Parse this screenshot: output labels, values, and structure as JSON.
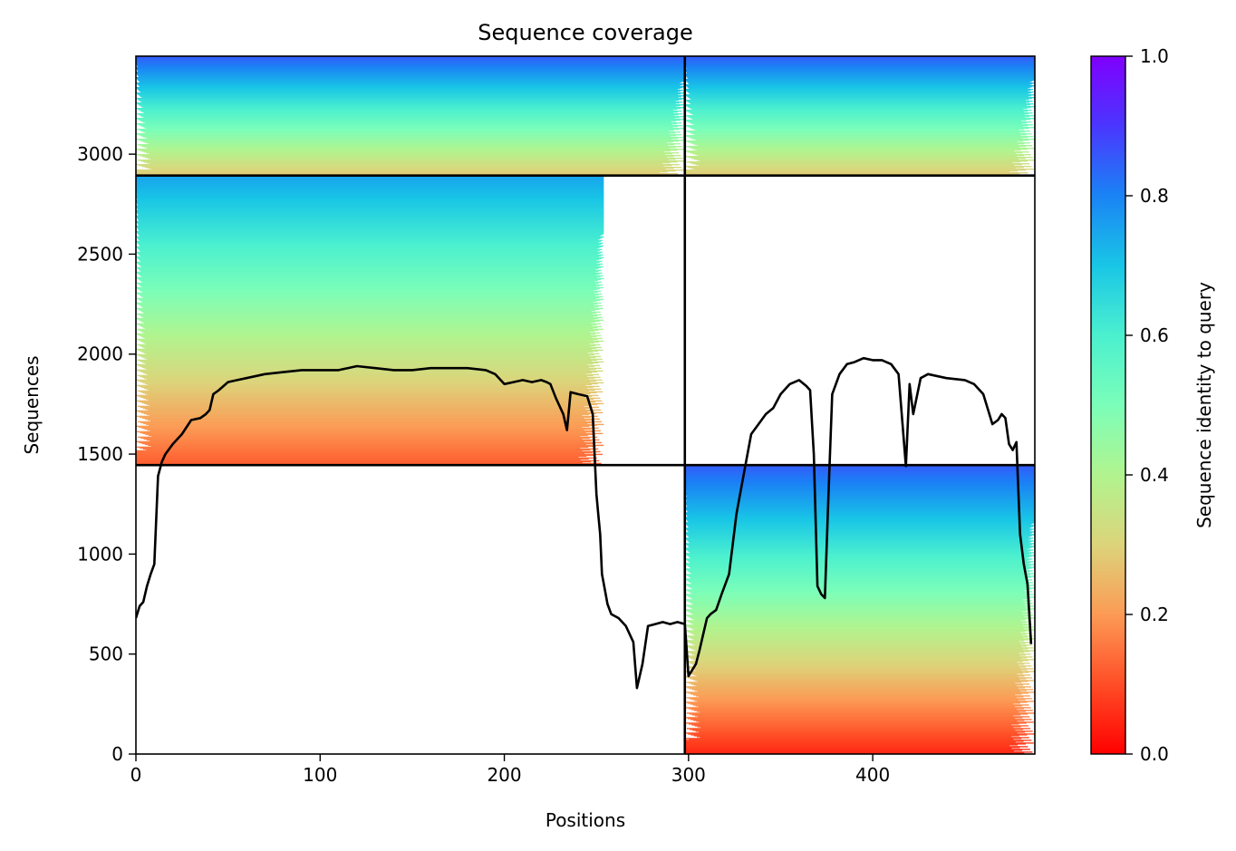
{
  "chart_data": {
    "type": "heatmap",
    "title": "Sequence coverage",
    "xlabel": "Positions",
    "ylabel": "Sequences",
    "xlim": [
      0,
      488
    ],
    "ylim": [
      0,
      3490
    ],
    "x_ticks": [
      0,
      100,
      200,
      300,
      400
    ],
    "y_ticks": [
      0,
      500,
      1000,
      1500,
      2000,
      2500,
      3000
    ],
    "colorbar": {
      "label": "Sequence identity to query",
      "range": [
        0,
        1
      ],
      "ticks": [
        "0.0",
        "0.2",
        "0.4",
        "0.6",
        "0.8",
        "1.0"
      ],
      "colormap": "rainbow_r"
    },
    "divider_x": 298,
    "divider_y": [
      1445,
      2893
    ],
    "blocks": [
      {
        "x0": 0,
        "x1": 298,
        "y0": 2893,
        "y1": 3490,
        "identity_top": 0.85,
        "identity_bottom": 0.28
      },
      {
        "x0": 298,
        "x1": 488,
        "y0": 2893,
        "y1": 3490,
        "identity_top": 0.85,
        "identity_bottom": 0.28
      },
      {
        "x0": 0,
        "x1": 254,
        "y0": 1445,
        "y1": 2893,
        "identity_top": 0.75,
        "identity_bottom": 0.12
      },
      {
        "x0": 298,
        "x1": 488,
        "y0": 0,
        "y1": 1445,
        "identity_top": 0.85,
        "identity_bottom": 0.05
      }
    ],
    "series": [
      {
        "x": [
          0,
          2,
          4,
          6,
          8,
          10,
          12,
          14,
          16,
          20,
          25,
          30,
          35,
          38,
          40,
          42,
          45,
          50,
          55,
          60,
          70,
          80,
          90,
          100,
          110,
          120,
          130,
          140,
          150,
          160,
          170,
          180,
          190,
          195,
          200,
          205,
          210,
          215,
          220,
          223,
          225,
          228,
          232,
          234,
          236,
          240,
          245,
          248,
          250,
          251,
          252,
          253,
          255,
          256,
          258,
          262,
          266,
          270,
          272,
          275,
          278,
          282,
          286,
          290,
          294,
          298,
          300,
          302,
          304,
          306,
          308,
          310,
          312,
          315,
          318,
          322,
          326,
          330,
          334,
          338,
          342,
          346,
          350,
          355,
          360,
          364,
          366,
          368,
          370,
          372,
          374,
          376,
          378,
          382,
          386,
          390,
          395,
          400,
          405,
          410,
          414,
          418,
          420,
          422,
          426,
          430,
          440,
          450,
          455,
          460,
          465,
          468,
          470,
          472,
          474,
          476,
          478,
          480,
          482,
          484,
          486
        ],
        "y": [
          680,
          740,
          760,
          840,
          900,
          950,
          1390,
          1460,
          1500,
          1550,
          1600,
          1670,
          1680,
          1700,
          1720,
          1800,
          1820,
          1860,
          1870,
          1880,
          1900,
          1910,
          1920,
          1920,
          1920,
          1940,
          1930,
          1920,
          1920,
          1930,
          1930,
          1930,
          1920,
          1900,
          1850,
          1860,
          1870,
          1860,
          1870,
          1860,
          1850,
          1780,
          1700,
          1620,
          1810,
          1800,
          1790,
          1700,
          1300,
          1200,
          1100,
          900,
          800,
          750,
          700,
          680,
          640,
          560,
          330,
          450,
          640,
          650,
          660,
          650,
          660,
          650,
          390,
          420,
          450,
          520,
          600,
          680,
          700,
          720,
          800,
          900,
          1200,
          1400,
          1600,
          1650,
          1700,
          1730,
          1800,
          1850,
          1870,
          1840,
          1820,
          1500,
          840,
          800,
          780,
          1300,
          1800,
          1900,
          1950,
          1960,
          1980,
          1970,
          1970,
          1950,
          1900,
          1440,
          1850,
          1700,
          1880,
          1900,
          1880,
          1870,
          1850,
          1800,
          1650,
          1670,
          1700,
          1680,
          1550,
          1520,
          1560,
          1100,
          950,
          850,
          550
        ]
      }
    ]
  }
}
